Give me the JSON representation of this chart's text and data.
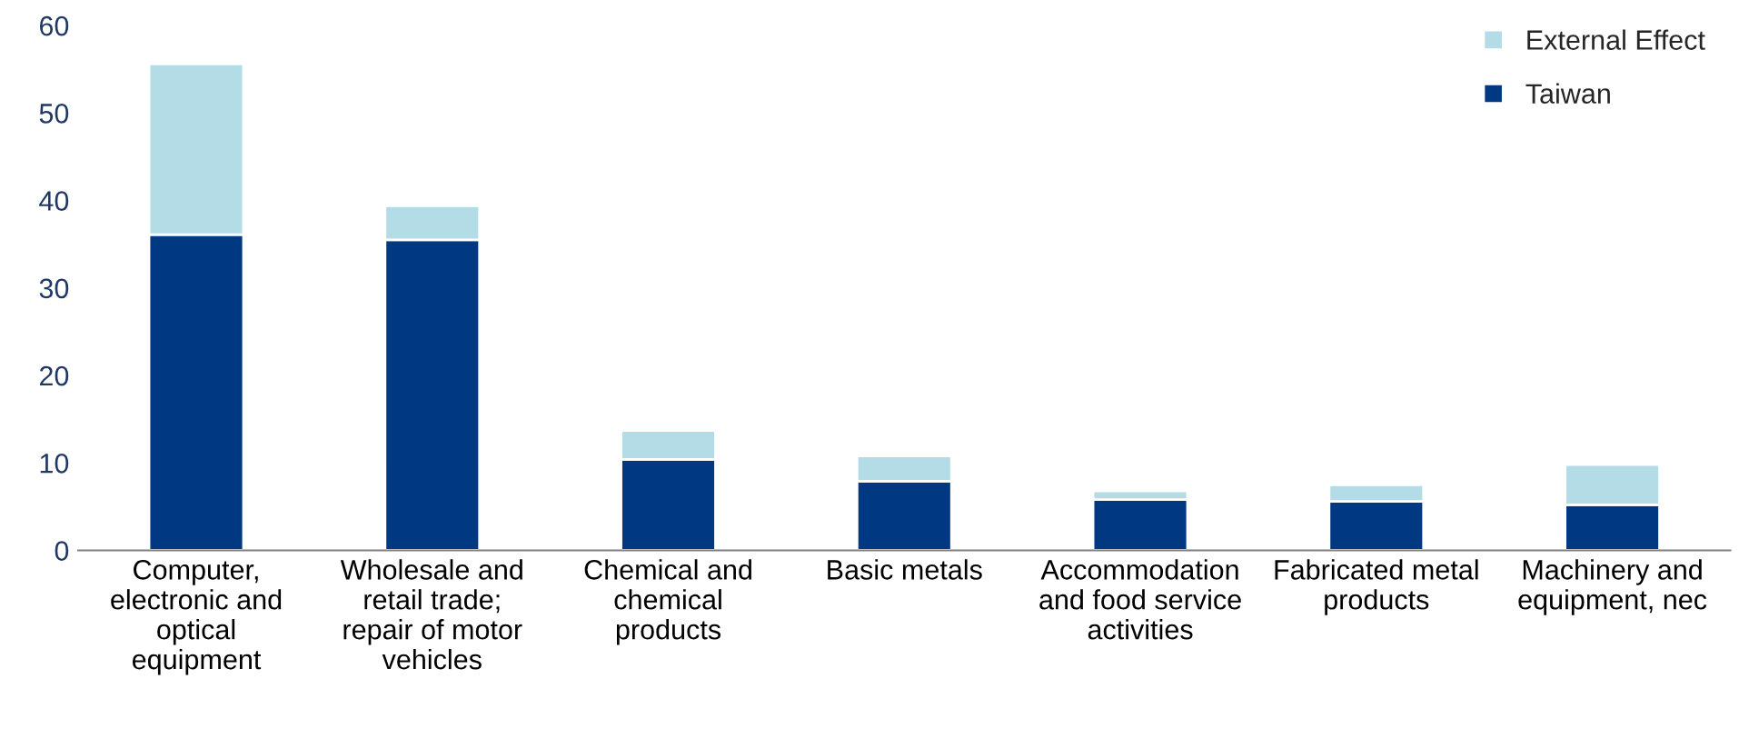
{
  "chart_data": {
    "type": "bar",
    "stacked": true,
    "categories": [
      "Computer,\nelectronic and\noptical\nequipment",
      "Wholesale and\nretail trade;\nrepair of motor\nvehicles",
      "Chemical and\nchemical\nproducts",
      "Basic metals",
      "Accommodation\nand food service\nactivities",
      "Fabricated metal\nproducts",
      "Machinery and\nequipment, nec"
    ],
    "series": [
      {
        "name": "Taiwan",
        "color": "#003882",
        "values": [
          36.1,
          35.5,
          10.4,
          7.9,
          5.8,
          5.6,
          5.2
        ]
      },
      {
        "name": "External Effect",
        "color": "#b4dce6",
        "values": [
          19.5,
          3.9,
          3.3,
          2.9,
          1.0,
          1.9,
          4.6
        ]
      }
    ],
    "ylim": [
      0,
      60
    ],
    "yticks": [
      0,
      10,
      20,
      30,
      40,
      50,
      60
    ],
    "grid": false,
    "legend": "top right"
  }
}
